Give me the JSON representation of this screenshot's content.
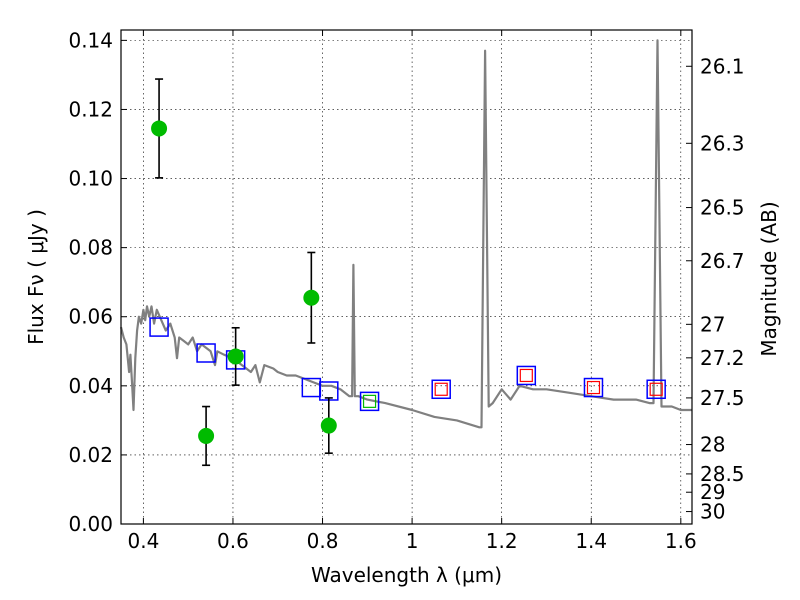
{
  "chart_data": {
    "type": "scatter",
    "xlabel": "Wavelength  λ (μm)",
    "ylabel": "Flux  Fν  ( μJy )",
    "y2label": "Magnitude (AB)",
    "xlim": [
      0.35,
      1.625
    ],
    "ylim": [
      0.0,
      0.143
    ],
    "x_ticks": [
      0.4,
      0.6,
      0.8,
      1.0,
      1.2,
      1.4,
      1.6
    ],
    "x_tick_labels": [
      "0.4",
      "0.6",
      "0.8",
      "1",
      "1.2",
      "1.4",
      "1.6"
    ],
    "y_ticks": [
      0.0,
      0.02,
      0.04,
      0.06,
      0.08,
      0.1,
      0.12,
      0.14
    ],
    "y_tick_labels": [
      "0.00",
      "0.02",
      "0.04",
      "0.06",
      "0.08",
      "0.10",
      "0.12",
      "0.14"
    ],
    "y2_ticks": [
      {
        "label": "26.1",
        "flux": 0.1325
      },
      {
        "label": "26.3",
        "flux": 0.1102
      },
      {
        "label": "26.5",
        "flux": 0.0916
      },
      {
        "label": "26.7",
        "flux": 0.0762
      },
      {
        "label": "27",
        "flux": 0.0578
      },
      {
        "label": "27.2",
        "flux": 0.0481
      },
      {
        "label": "27.5",
        "flux": 0.0365
      },
      {
        "label": "28",
        "flux": 0.023
      },
      {
        "label": "28.5",
        "flux": 0.0145
      },
      {
        "label": "29",
        "flux": 0.0092
      },
      {
        "label": "30",
        "flux": 0.0036
      }
    ],
    "grid": true,
    "series": [
      {
        "kind": "observed",
        "color": "#00bb00",
        "points": [
          {
            "x": 0.435,
            "y": 0.1145,
            "yerr": 0.0143
          },
          {
            "x": 0.54,
            "y": 0.0255,
            "yerr": 0.0085
          },
          {
            "x": 0.606,
            "y": 0.0485,
            "yerr": 0.0083
          },
          {
            "x": 0.775,
            "y": 0.0655,
            "yerr": 0.0131
          },
          {
            "x": 0.814,
            "y": 0.0285,
            "yerr": 0.008
          }
        ]
      },
      {
        "kind": "model-synthetic",
        "color": "#0000ff",
        "points": [
          {
            "x": 0.435,
            "y": 0.057
          },
          {
            "x": 0.54,
            "y": 0.0495
          },
          {
            "x": 0.606,
            "y": 0.0475
          },
          {
            "x": 0.775,
            "y": 0.0395
          },
          {
            "x": 0.814,
            "y": 0.0385
          },
          {
            "x": 0.905,
            "y": 0.0355
          },
          {
            "x": 1.065,
            "y": 0.039
          },
          {
            "x": 1.255,
            "y": 0.043
          },
          {
            "x": 1.405,
            "y": 0.0395
          },
          {
            "x": 1.545,
            "y": 0.039
          }
        ]
      },
      {
        "kind": "inner-markers",
        "points": [
          {
            "x": 0.905,
            "y": 0.0355,
            "color": "#00bb00"
          },
          {
            "x": 1.065,
            "y": 0.039,
            "color": "#ff0000"
          },
          {
            "x": 1.255,
            "y": 0.043,
            "color": "#ff0000"
          },
          {
            "x": 1.405,
            "y": 0.0395,
            "color": "#ff0000"
          },
          {
            "x": 1.545,
            "y": 0.039,
            "color": "#ff0000"
          }
        ]
      },
      {
        "kind": "sed-template",
        "color": "#808080",
        "points": [
          [
            0.35,
            0.057
          ],
          [
            0.356,
            0.054
          ],
          [
            0.362,
            0.052
          ],
          [
            0.368,
            0.044
          ],
          [
            0.371,
            0.049
          ],
          [
            0.375,
            0.04
          ],
          [
            0.378,
            0.033
          ],
          [
            0.382,
            0.048
          ],
          [
            0.386,
            0.056
          ],
          [
            0.39,
            0.06
          ],
          [
            0.395,
            0.058
          ],
          [
            0.4,
            0.062
          ],
          [
            0.404,
            0.059
          ],
          [
            0.408,
            0.063
          ],
          [
            0.413,
            0.06
          ],
          [
            0.418,
            0.063
          ],
          [
            0.424,
            0.058
          ],
          [
            0.43,
            0.062
          ],
          [
            0.44,
            0.059
          ],
          [
            0.45,
            0.056
          ],
          [
            0.46,
            0.058
          ],
          [
            0.47,
            0.054
          ],
          [
            0.475,
            0.048
          ],
          [
            0.48,
            0.054
          ],
          [
            0.49,
            0.053
          ],
          [
            0.5,
            0.052
          ],
          [
            0.51,
            0.054
          ],
          [
            0.52,
            0.05
          ],
          [
            0.53,
            0.052
          ],
          [
            0.55,
            0.05
          ],
          [
            0.56,
            0.046
          ],
          [
            0.565,
            0.05
          ],
          [
            0.58,
            0.049
          ],
          [
            0.6,
            0.048
          ],
          [
            0.62,
            0.046
          ],
          [
            0.64,
            0.044
          ],
          [
            0.65,
            0.046
          ],
          [
            0.66,
            0.041
          ],
          [
            0.67,
            0.046
          ],
          [
            0.69,
            0.045
          ],
          [
            0.7,
            0.044
          ],
          [
            0.72,
            0.043
          ],
          [
            0.74,
            0.043
          ],
          [
            0.76,
            0.042
          ],
          [
            0.78,
            0.041
          ],
          [
            0.8,
            0.04
          ],
          [
            0.82,
            0.04
          ],
          [
            0.84,
            0.039
          ],
          [
            0.86,
            0.037
          ],
          [
            0.866,
            0.037
          ],
          [
            0.869,
            0.075
          ],
          [
            0.872,
            0.037
          ],
          [
            0.88,
            0.037
          ],
          [
            0.9,
            0.036
          ],
          [
            0.94,
            0.035
          ],
          [
            1.0,
            0.033
          ],
          [
            1.05,
            0.031
          ],
          [
            1.1,
            0.03
          ],
          [
            1.15,
            0.028
          ],
          [
            1.155,
            0.028
          ],
          [
            1.163,
            0.137
          ],
          [
            1.171,
            0.034
          ],
          [
            1.18,
            0.035
          ],
          [
            1.2,
            0.039
          ],
          [
            1.22,
            0.036
          ],
          [
            1.24,
            0.04
          ],
          [
            1.27,
            0.039
          ],
          [
            1.3,
            0.039
          ],
          [
            1.35,
            0.038
          ],
          [
            1.4,
            0.037
          ],
          [
            1.45,
            0.036
          ],
          [
            1.5,
            0.036
          ],
          [
            1.53,
            0.035
          ],
          [
            1.539,
            0.035
          ],
          [
            1.548,
            0.14
          ],
          [
            1.557,
            0.034
          ],
          [
            1.58,
            0.034
          ],
          [
            1.6,
            0.033
          ],
          [
            1.625,
            0.033
          ]
        ]
      }
    ]
  }
}
